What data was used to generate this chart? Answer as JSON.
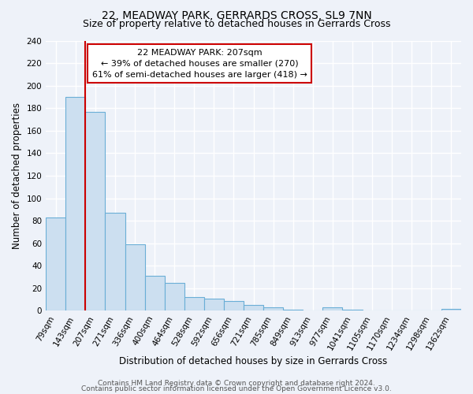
{
  "title": "22, MEADWAY PARK, GERRARDS CROSS, SL9 7NN",
  "subtitle": "Size of property relative to detached houses in Gerrards Cross",
  "xlabel": "Distribution of detached houses by size in Gerrards Cross",
  "ylabel": "Number of detached properties",
  "bin_labels": [
    "79sqm",
    "143sqm",
    "207sqm",
    "271sqm",
    "336sqm",
    "400sqm",
    "464sqm",
    "528sqm",
    "592sqm",
    "656sqm",
    "721sqm",
    "785sqm",
    "849sqm",
    "913sqm",
    "977sqm",
    "1041sqm",
    "1105sqm",
    "1170sqm",
    "1234sqm",
    "1298sqm",
    "1362sqm"
  ],
  "bar_heights": [
    83,
    190,
    177,
    87,
    59,
    31,
    25,
    12,
    11,
    9,
    5,
    3,
    1,
    0,
    3,
    1,
    0,
    0,
    0,
    0,
    2
  ],
  "bar_color": "#ccdff0",
  "bar_edge_color": "#6aaed6",
  "highlight_index": 2,
  "red_line_x": 1.5,
  "red_line_color": "#cc0000",
  "ylim": [
    0,
    240
  ],
  "yticks": [
    0,
    20,
    40,
    60,
    80,
    100,
    120,
    140,
    160,
    180,
    200,
    220,
    240
  ],
  "annotation_title": "22 MEADWAY PARK: 207sqm",
  "annotation_line1": "← 39% of detached houses are smaller (270)",
  "annotation_line2": "61% of semi-detached houses are larger (418) →",
  "annotation_box_color": "#ffffff",
  "annotation_box_edge": "#cc0000",
  "footer1": "Contains HM Land Registry data © Crown copyright and database right 2024.",
  "footer2": "Contains public sector information licensed under the Open Government Licence v3.0.",
  "background_color": "#eef2f9",
  "grid_color": "#ffffff",
  "title_fontsize": 10,
  "subtitle_fontsize": 9,
  "axis_label_fontsize": 8.5,
  "tick_fontsize": 7.5,
  "annotation_fontsize": 8,
  "footer_fontsize": 6.5
}
